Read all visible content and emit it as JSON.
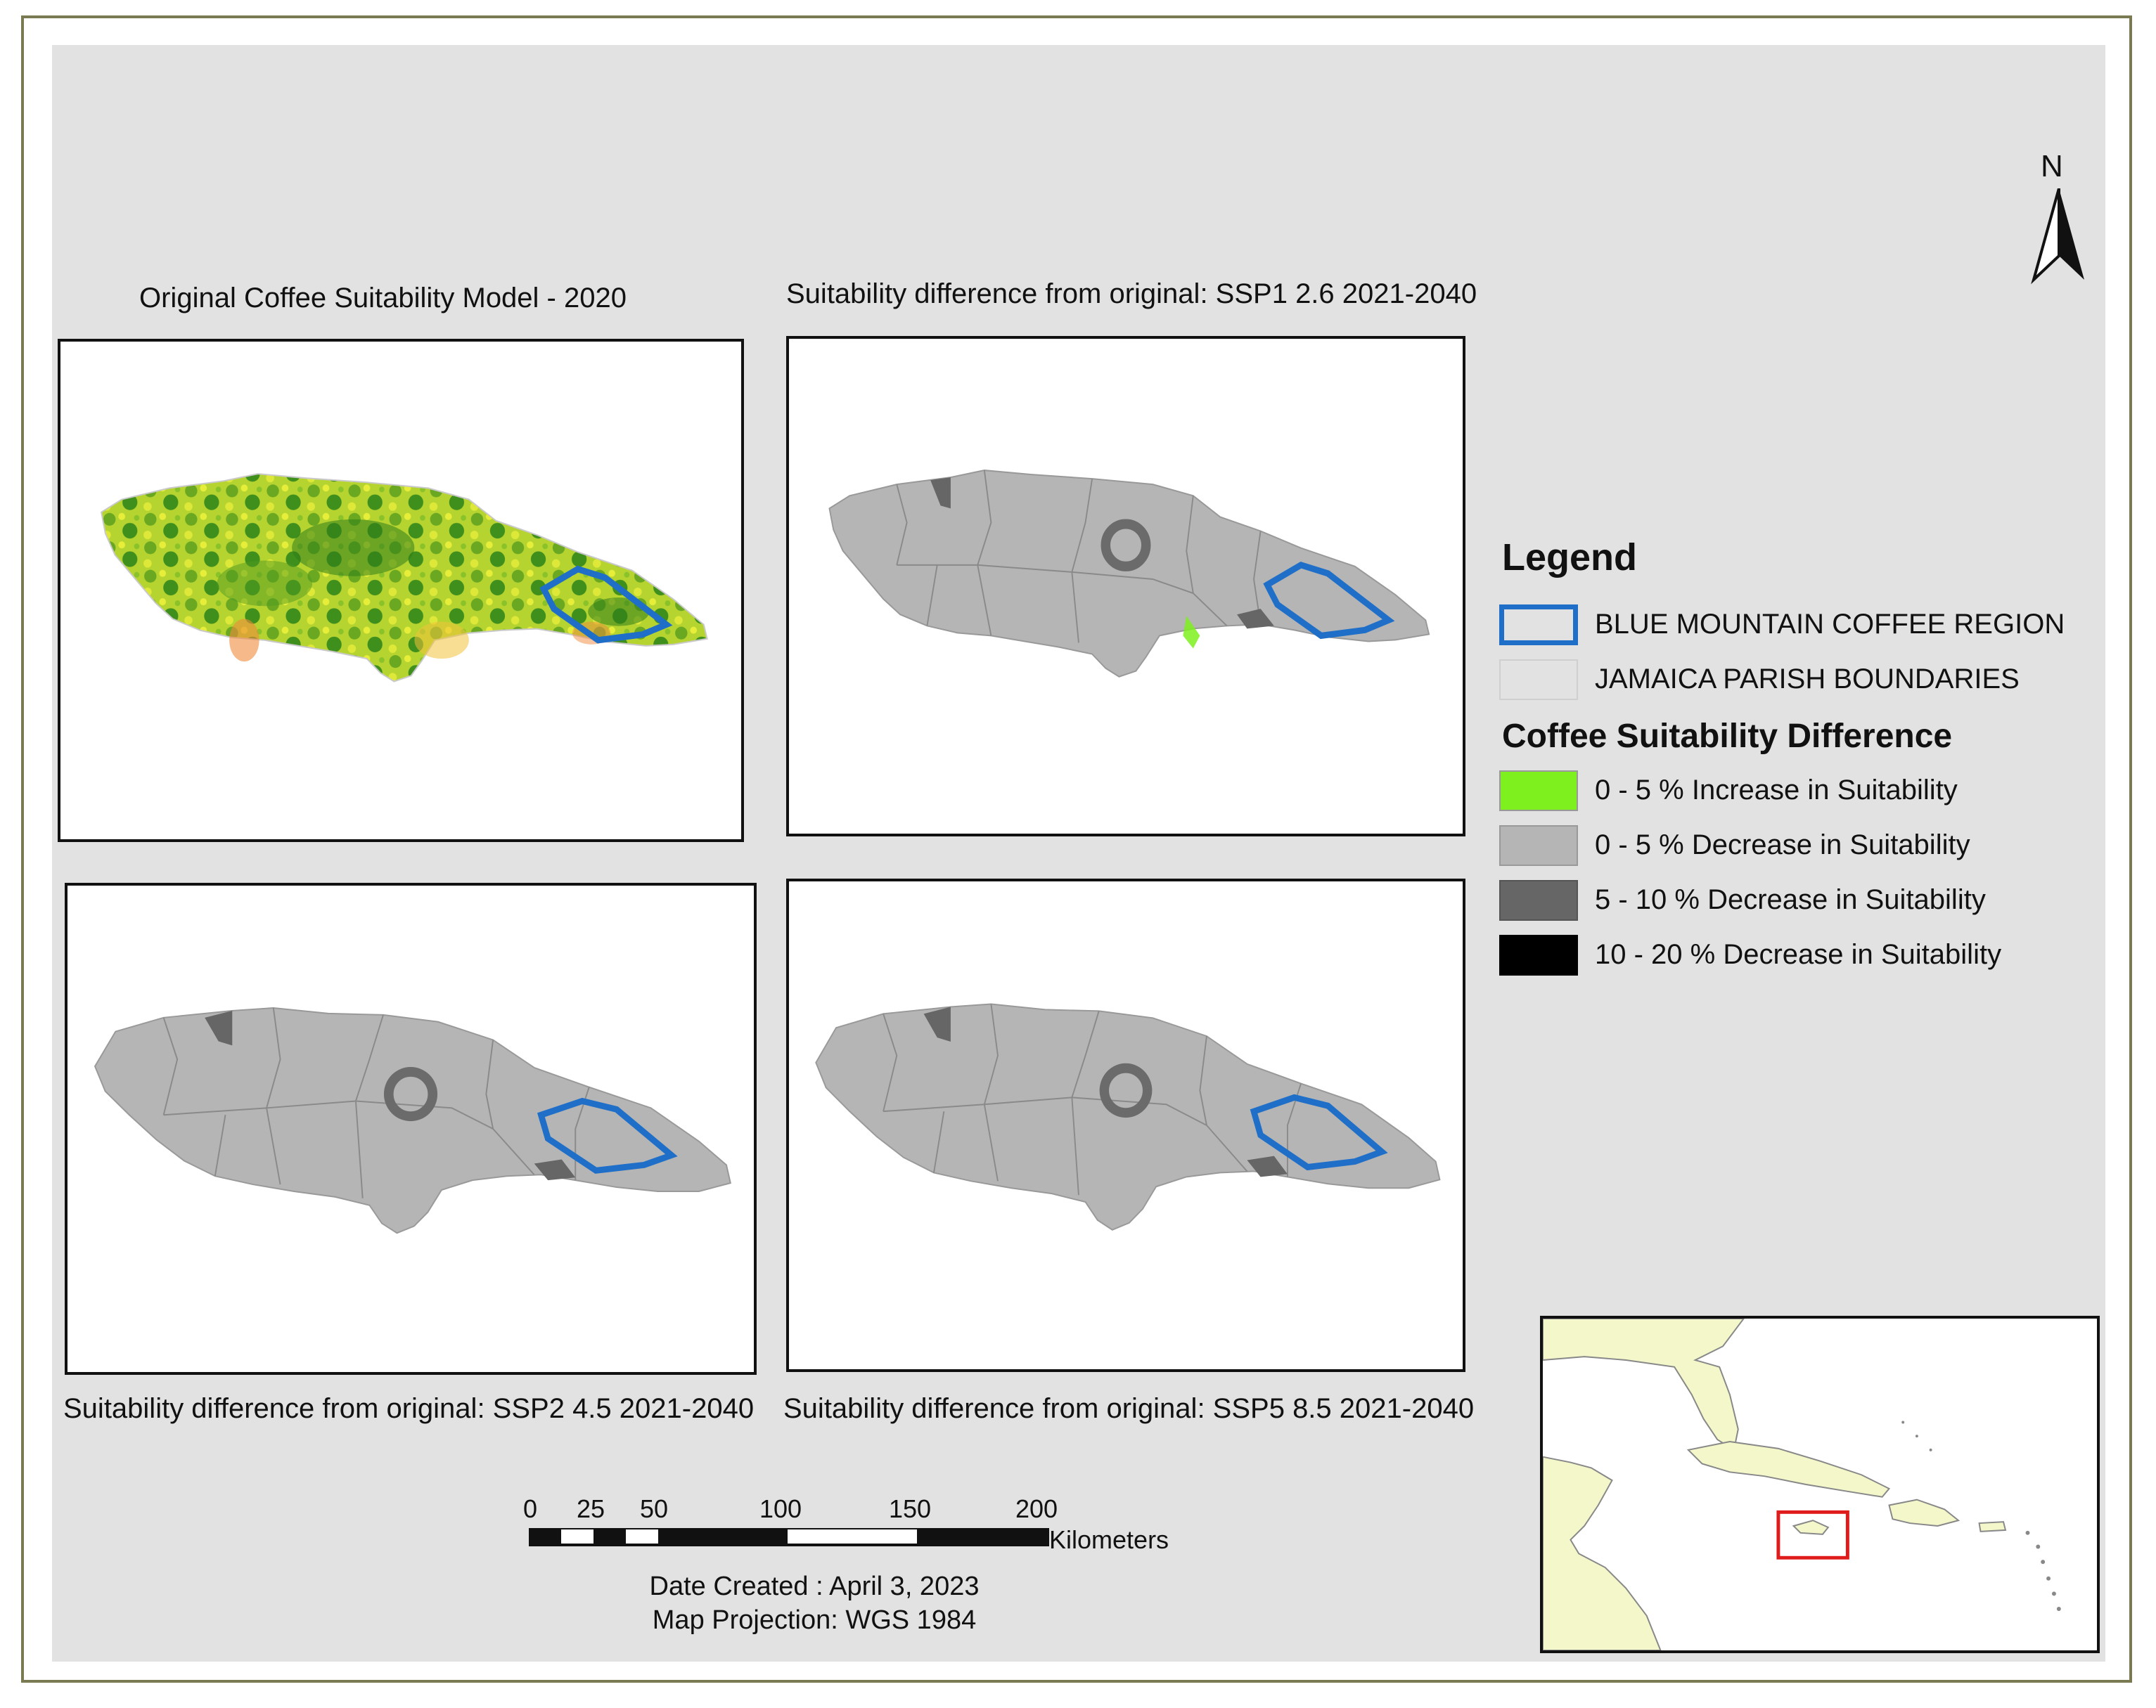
{
  "panels": {
    "original": {
      "title": "Original Coffee Suitability Model - 2020"
    },
    "ssp1": {
      "title": "Suitability difference from original: SSP1 2.6 2021-2040"
    },
    "ssp2": {
      "title": "Suitability difference from original: SSP2 4.5 2021-2040"
    },
    "ssp5": {
      "title": "Suitability difference from original: SSP5 8.5 2021-2040"
    }
  },
  "legend": {
    "title": "Legend",
    "items": [
      {
        "label": "BLUE MOUNTAIN COFFEE REGION",
        "color": "#1f6fc9"
      },
      {
        "label": "JAMAICA PARISH BOUNDARIES",
        "color": "#e2e2e2"
      }
    ],
    "suitability_title": "Coffee Suitability Difference",
    "classes": [
      {
        "label": "0 - 5 % Increase in Suitability",
        "color": "#7ef01e"
      },
      {
        "label": "0 - 5 % Decrease in Suitability",
        "color": "#b5b5b5"
      },
      {
        "label": "5 - 10 % Decrease in Suitability",
        "color": "#666666"
      },
      {
        "label": "10 - 20 % Decrease in Suitability",
        "color": "#000000"
      }
    ]
  },
  "north_arrow": {
    "label": "N"
  },
  "scale_bar": {
    "ticks": [
      "0",
      "25",
      "50",
      "100",
      "150",
      "200"
    ],
    "unit": "Kilometers"
  },
  "info": {
    "date": "Date Created : April 3, 2023",
    "projection": "Map Projection: WGS 1984"
  },
  "inset": {
    "land_color": "#f4f7c9",
    "highlight_color": "#e01b1b"
  }
}
